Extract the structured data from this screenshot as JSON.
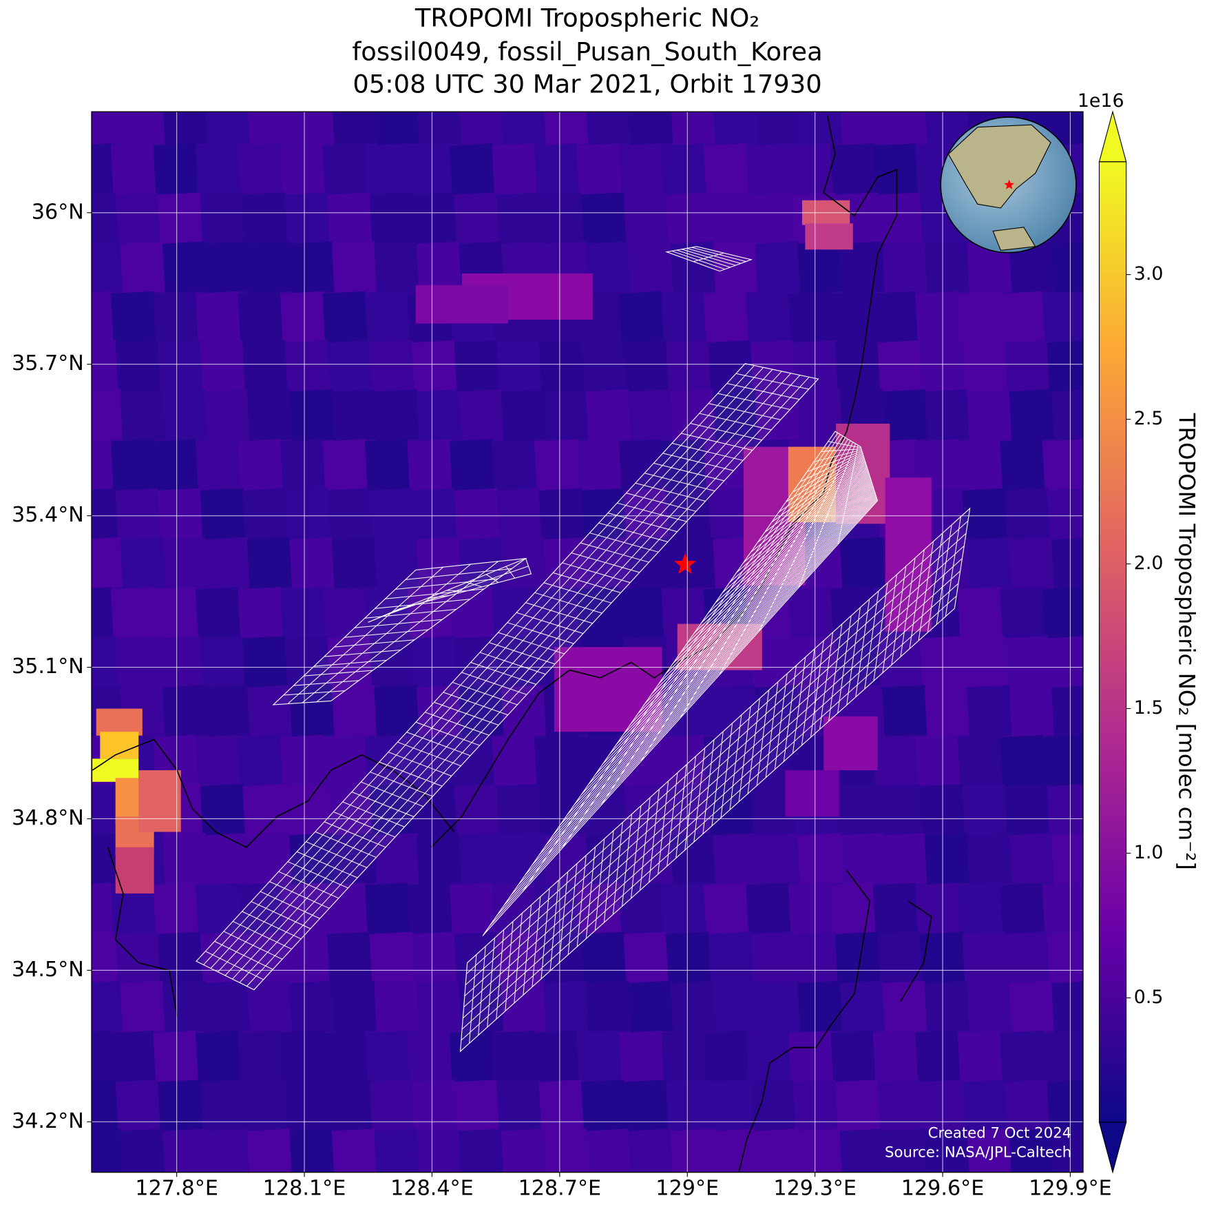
{
  "title": [
    "TROPOMI Tropospheric NO₂",
    "fossil0049, fossil_Pusan_South_Korea",
    "05:08 UTC 30 Mar 2021, Orbit 17930"
  ],
  "map": {
    "lonlim": [
      127.6,
      129.93
    ],
    "latlim": [
      34.1,
      36.2
    ],
    "lon_ticks": [
      {
        "value": 127.8,
        "label": "127.8°E"
      },
      {
        "value": 128.1,
        "label": "128.1°E"
      },
      {
        "value": 128.4,
        "label": "128.4°E"
      },
      {
        "value": 128.7,
        "label": "128.7°E"
      },
      {
        "value": 129,
        "label": "129°E"
      },
      {
        "value": 129.3,
        "label": "129.3°E"
      },
      {
        "value": 129.6,
        "label": "129.6°E"
      },
      {
        "value": 129.9,
        "label": "129.9°E"
      }
    ],
    "lat_ticks": [
      {
        "value": 36,
        "label": "36°N"
      },
      {
        "value": 35.7,
        "label": "35.7°N"
      },
      {
        "value": 35.4,
        "label": "35.4°N"
      },
      {
        "value": 35.1,
        "label": "35.1°N"
      },
      {
        "value": 34.8,
        "label": "34.8°N"
      },
      {
        "value": 34.5,
        "label": "34.5°N"
      },
      {
        "value": 34.2,
        "label": "34.2°N"
      }
    ],
    "grid": true
  },
  "colorbar": {
    "label": "TROPOMI Tropospheric NO₂ [molec cm⁻²]",
    "offset_text": "1e16",
    "clim": [
      0.07,
      3.39
    ],
    "ticks": [
      0.5,
      {
        "value": 1,
        "label": "1.0"
      },
      1.5,
      {
        "value": 2,
        "label": "2.0"
      },
      2.5,
      {
        "value": 3,
        "label": "3.0"
      }
    ],
    "colormap": [
      "#0d0887",
      "#6a00a8",
      "#b12a90",
      "#e16462",
      "#fca636",
      "#f0f921"
    ]
  },
  "credits": [
    "Created 7 Oct 2024",
    "Source: NASA/JPL-Caltech"
  ]
}
